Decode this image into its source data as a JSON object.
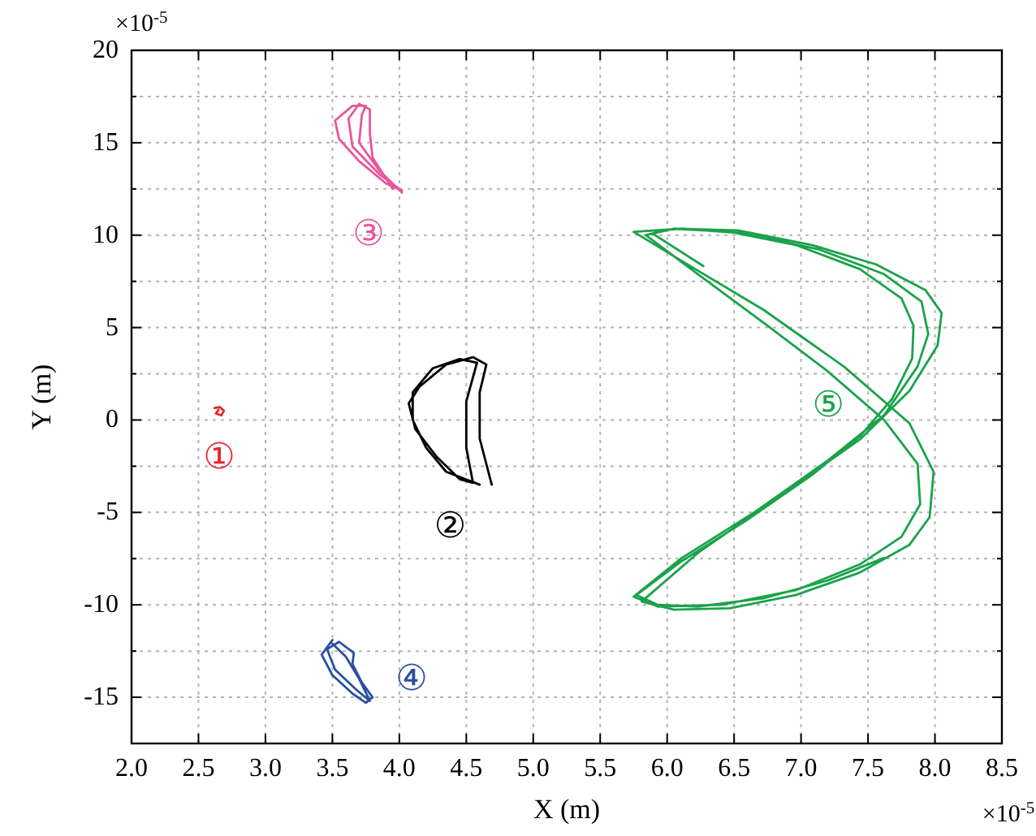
{
  "chart_data": {
    "type": "line",
    "xlabel": "X (m)",
    "ylabel": "Y (m)",
    "xlim": [
      2.0,
      8.5
    ],
    "ylim": [
      -17.5,
      20
    ],
    "xticks": [
      {
        "value": 2,
        "label": "2.0"
      },
      {
        "value": 2.5,
        "label": "2.5"
      },
      {
        "value": 3,
        "label": "3.0"
      },
      {
        "value": 3.5,
        "label": "3.5"
      },
      {
        "value": 4,
        "label": "4.0"
      },
      {
        "value": 4.5,
        "label": "4.5"
      },
      {
        "value": 5,
        "label": "5.0"
      },
      {
        "value": 5.5,
        "label": "5.5"
      },
      {
        "value": 6,
        "label": "6.0"
      },
      {
        "value": 6.5,
        "label": "6.5"
      },
      {
        "value": 7,
        "label": "7.0"
      },
      {
        "value": 7.5,
        "label": "7.5"
      },
      {
        "value": 8,
        "label": "8.0"
      },
      {
        "value": 8.5,
        "label": "8.5"
      }
    ],
    "yticks": [
      -15,
      {
        "value": -12.5,
        "label": null
      },
      -10,
      {
        "value": -7.5,
        "label": null
      },
      -5,
      {
        "value": -2.5,
        "label": null
      },
      0,
      {
        "value": 2.5,
        "label": null
      },
      5,
      {
        "value": 7.5,
        "label": null
      },
      10,
      {
        "value": 12.5,
        "label": null
      },
      15,
      {
        "value": 17.5,
        "label": null
      },
      20
    ],
    "grid": true,
    "legend": false,
    "marker": "none",
    "line_style": "solid",
    "series": [
      {
        "name": "①",
        "color": "#e8262b",
        "x": [
          2.62,
          2.66,
          2.69,
          2.67,
          2.63,
          2.65
        ],
        "values": [
          0.65,
          0.7,
          0.5,
          0.25,
          0.35,
          0.55
        ]
      },
      {
        "name": "②",
        "color": "#000000",
        "x": [
          4.69,
          4.6,
          4.6,
          4.65,
          4.55,
          4.35,
          4.15,
          4.07,
          4.12,
          4.28,
          4.45,
          4.55,
          4.5,
          4.5,
          4.58,
          4.45,
          4.25,
          4.1,
          4.1,
          4.2,
          4.35,
          4.6
        ],
        "values": [
          -3.5,
          -1,
          1.5,
          3.0,
          3.4,
          3.0,
          1.8,
          0.9,
          -0.5,
          -2,
          -3.2,
          -3.4,
          -1.5,
          1,
          3.1,
          3.3,
          2.8,
          1.5,
          0,
          -1.5,
          -2.8,
          -3.5
        ]
      },
      {
        "name": "③",
        "color": "#e8559a",
        "x": [
          4.02,
          3.85,
          3.7,
          3.72,
          3.75,
          3.65,
          3.52,
          3.55,
          3.7,
          3.9,
          4.02,
          3.85,
          3.65,
          3.62,
          3.7,
          3.78,
          3.78,
          3.8,
          3.95
        ],
        "values": [
          12.3,
          13.5,
          15,
          16.5,
          17.0,
          17.0,
          16.2,
          15.2,
          14,
          12.8,
          12.4,
          13.3,
          14.8,
          16.3,
          17.1,
          16.8,
          15.5,
          14.2,
          12.5
        ]
      },
      {
        "name": "④",
        "color": "#2a4fa0",
        "x": [
          3.5,
          3.42,
          3.5,
          3.65,
          3.75,
          3.8,
          3.72,
          3.65,
          3.66,
          3.55,
          3.46,
          3.52,
          3.68,
          3.78,
          3.7,
          3.6,
          3.5
        ],
        "values": [
          -11.9,
          -12.7,
          -13.8,
          -14.8,
          -15.3,
          -15.0,
          -14.2,
          -13.2,
          -12.6,
          -12.0,
          -12.4,
          -13.5,
          -14.6,
          -15.2,
          -14.0,
          -12.8,
          -12.1
        ]
      },
      {
        "name": "⑤",
        "color": "#1aa34a",
        "x": [
          7.62,
          7.2,
          6.72,
          6.23,
          5.93,
          5.77,
          6.11,
          6.59,
          7.08,
          7.44,
          7.68,
          7.83,
          7.84,
          7.75,
          7.44,
          6.96,
          6.47,
          6.05,
          5.84,
          6.23,
          6.72,
          7.2,
          7.62,
          7.87,
          7.89,
          7.75,
          7.44,
          6.96,
          6.41,
          5.93,
          5.75,
          6.11,
          6.65,
          7.2,
          7.62,
          7.87,
          7.95,
          7.9,
          7.62,
          7.14,
          6.59,
          6.11,
          5.75,
          6.11,
          6.72,
          7.32,
          7.81,
          7.99,
          7.96,
          7.81,
          7.44,
          6.96,
          6.47,
          6.05,
          5.81,
          6.23,
          6.84,
          7.44,
          7.81,
          8.02,
          8.05,
          7.93,
          7.56,
          7.08,
          6.53,
          6.05,
          5.89,
          6.27
        ],
        "values": [
          -7.46,
          -8.68,
          -9.65,
          -10.09,
          -10.0,
          -9.47,
          -7.63,
          -5.44,
          -2.98,
          -0.88,
          1.14,
          3.33,
          5.09,
          6.58,
          8.16,
          9.47,
          10.18,
          10.35,
          10.0,
          7.89,
          5.26,
          2.63,
          0,
          -2.37,
          -4.56,
          -6.32,
          -7.81,
          -9.21,
          -10.0,
          -10.09,
          -9.56,
          -7.46,
          -5.0,
          -2.19,
          0.26,
          2.89,
          4.65,
          6.4,
          7.89,
          9.21,
          10.09,
          10.35,
          10.18,
          8.6,
          5.96,
          2.89,
          -0.18,
          -2.81,
          -5.26,
          -6.75,
          -8.25,
          -9.47,
          -10.18,
          -10.26,
          -9.82,
          -7.19,
          -4.12,
          -1.05,
          1.58,
          4.04,
          5.79,
          7.02,
          8.42,
          9.47,
          10.26,
          10.35,
          10.09,
          8.33
        ]
      }
    ],
    "annotations": [
      "×10$^{-5}$",
      "×10$^{-5}$"
    ]
  }
}
